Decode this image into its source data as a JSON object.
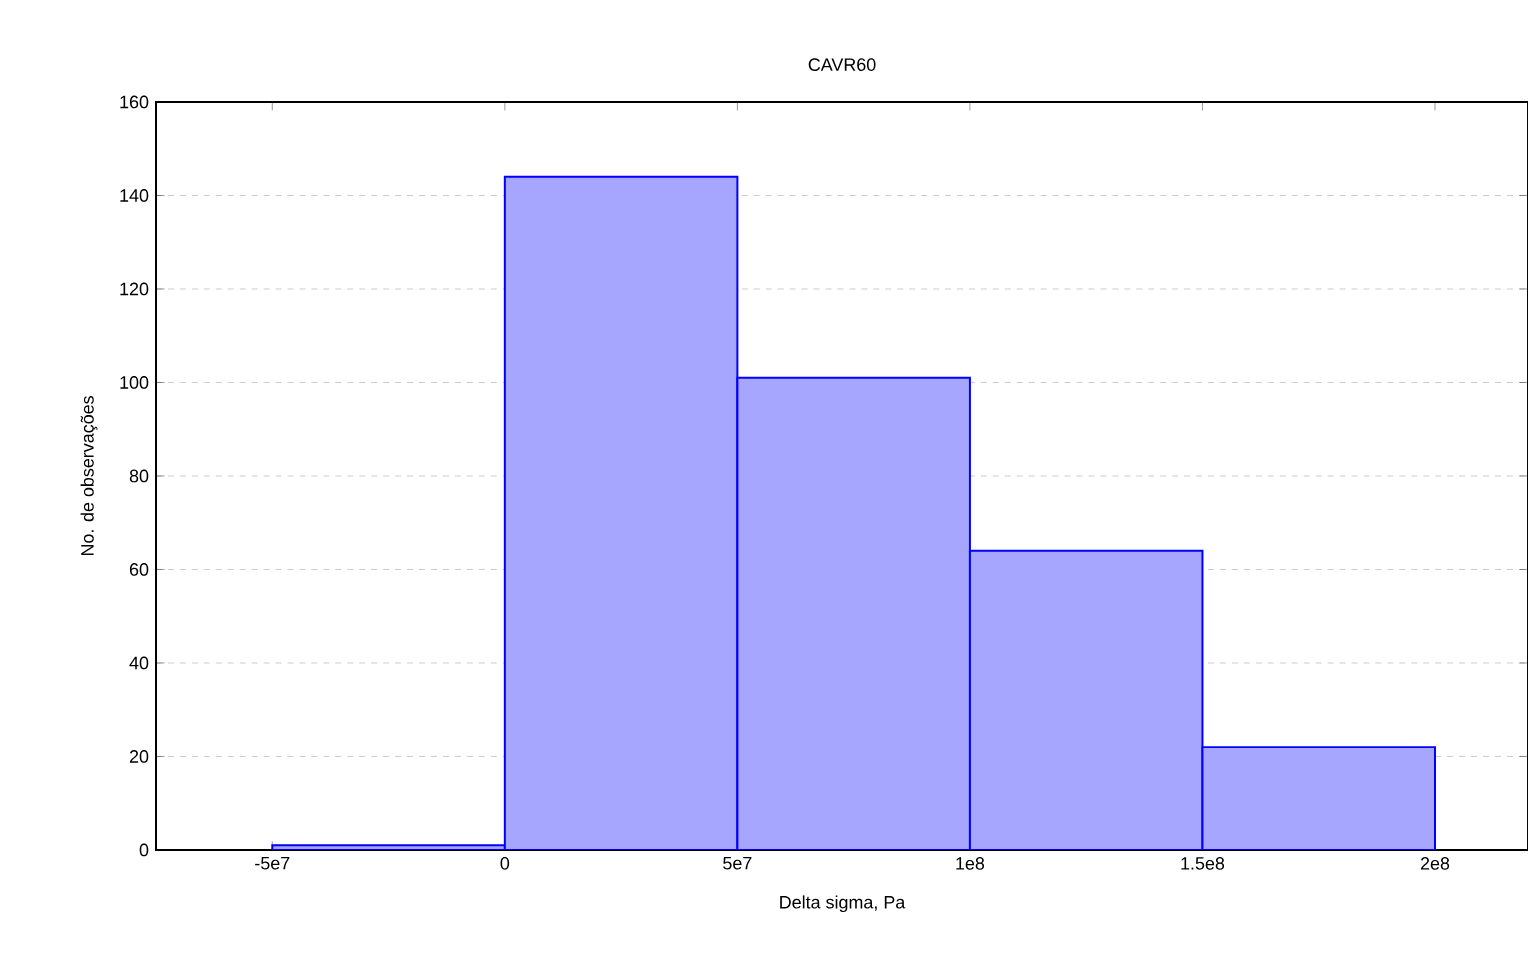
{
  "chart_data": {
    "type": "histogram",
    "title": "CAVR60",
    "xlabel": "Delta sigma, Pa",
    "ylabel": "No. de observações",
    "bins": [
      -50000000,
      0,
      50000000,
      100000000,
      150000000,
      200000000
    ],
    "values": [
      1,
      144,
      101,
      64,
      22
    ],
    "color": "#0000ff",
    "xlim": [
      -75000000,
      220000000
    ],
    "xticks": [
      {
        "value": -50000000,
        "label": "-5e7"
      },
      0,
      {
        "value": 50000000,
        "label": "5e7"
      },
      {
        "value": 100000000,
        "label": "1e8"
      },
      {
        "value": 150000000,
        "label": "1.5e8"
      },
      {
        "value": 200000000,
        "label": "2e8"
      }
    ],
    "ylim": [
      0,
      160
    ],
    "yticks": [
      0,
      20,
      40,
      60,
      80,
      100,
      120,
      140,
      160
    ],
    "grid": "y"
  }
}
